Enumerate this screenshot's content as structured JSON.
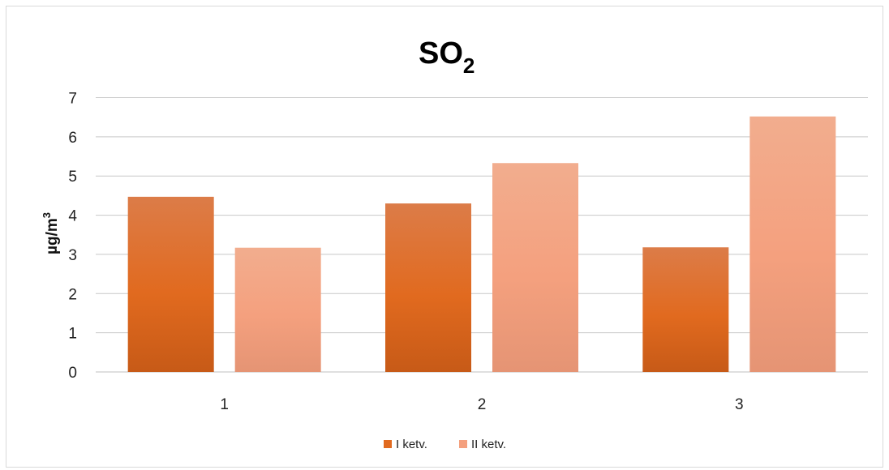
{
  "chart_data": {
    "type": "bar",
    "title": "SO",
    "title_subscript": "2",
    "xlabel": "",
    "ylabel": "µg/m",
    "ylabel_superscript": "3",
    "categories": [
      "1",
      "2",
      "3"
    ],
    "ylim": [
      0,
      7
    ],
    "yticks": [
      0,
      1,
      2,
      3,
      4,
      5,
      6,
      7
    ],
    "grid": true,
    "legend_position": "bottom",
    "series": [
      {
        "name": "I ketv.",
        "values": [
          4.47,
          4.3,
          3.18
        ],
        "color_top": "#dc7c48",
        "color_mid": "#e16a1f",
        "color_bottom": "#c75a17"
      },
      {
        "name": "II ketv.",
        "values": [
          3.17,
          5.33,
          6.52
        ],
        "color_top": "#f2ad8e",
        "color_mid": "#f4a07e",
        "color_bottom": "#e59474"
      }
    ]
  }
}
